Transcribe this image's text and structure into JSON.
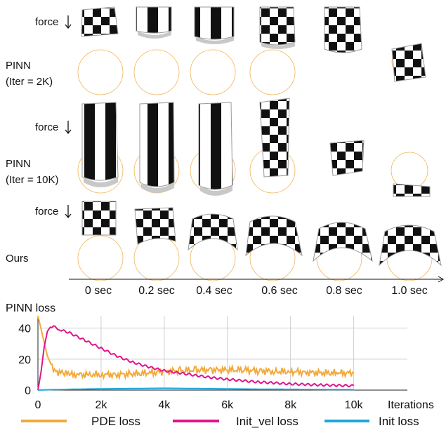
{
  "rows": [
    {
      "force": "force",
      "name_line1": "PINN",
      "name_line2": "(Iter = 2K)"
    },
    {
      "force": "force",
      "name_line1": "PINN",
      "name_line2": "(Iter = 10K)"
    },
    {
      "force": "force",
      "name_line1": "Ours",
      "name_line2": ""
    }
  ],
  "time_labels": [
    "0 sec",
    "0.2 sec",
    "0.4 sec",
    "0.6 sec",
    "0.8 sec",
    "1.0 sec"
  ],
  "colors": {
    "pde": "#f2a93b",
    "init_vel": "#e0158c",
    "init": "#1da7dc",
    "ring": "#f0b45a"
  },
  "chart_data": {
    "type": "line",
    "title": "PINN loss",
    "xlabel": "Iterations",
    "ylabel": "",
    "xlim": [
      0,
      11700
    ],
    "ylim": [
      0,
      48
    ],
    "x_ticks": [
      0,
      2000,
      4000,
      6000,
      8000,
      10000
    ],
    "x_tick_labels": [
      "0",
      "2k",
      "4k",
      "6k",
      "8k",
      "10k"
    ],
    "y_ticks": [
      0,
      20,
      40
    ],
    "y_tick_labels": [
      "0",
      "20",
      "40"
    ],
    "grid": true,
    "legend": "bottom",
    "series": [
      {
        "name": "PDE loss",
        "x": [
          0,
          150,
          300,
          450,
          600,
          800,
          1000,
          1300,
          1600,
          2000,
          2500,
          3000,
          3500,
          4000,
          4500,
          5000,
          5500,
          6000,
          6500,
          7000,
          7500,
          8000,
          8500,
          9000,
          9500,
          10000
        ],
        "values": [
          48,
          35,
          22,
          15,
          12,
          11,
          10,
          10,
          10,
          10,
          10,
          10.5,
          11,
          12,
          12.5,
          13,
          13,
          13,
          13,
          12.5,
          12,
          12,
          11.5,
          11,
          11,
          11
        ]
      },
      {
        "name": "Init_vel loss",
        "x": [
          0,
          100,
          200,
          300,
          400,
          500,
          700,
          1000,
          1500,
          2000,
          2500,
          3000,
          3500,
          4000,
          4500,
          5000,
          5500,
          6000,
          6500,
          7000,
          7500,
          8000,
          8500,
          9000,
          9500,
          10000
        ],
        "values": [
          0,
          12,
          28,
          38,
          41,
          41,
          39,
          37,
          32,
          27,
          22,
          18,
          15,
          12.5,
          11,
          9.5,
          8,
          7,
          6,
          5.2,
          4.6,
          4,
          3.6,
          3.3,
          3,
          2.8
        ]
      },
      {
        "name": "Init loss",
        "x": [
          0,
          500,
          1000,
          2000,
          3000,
          4000,
          5000,
          6000,
          7000,
          8000,
          9000,
          10000
        ],
        "values": [
          0,
          0.3,
          0.5,
          0.8,
          1,
          1.2,
          1,
          0.8,
          0.6,
          0.5,
          0.4,
          0.3
        ]
      }
    ]
  }
}
